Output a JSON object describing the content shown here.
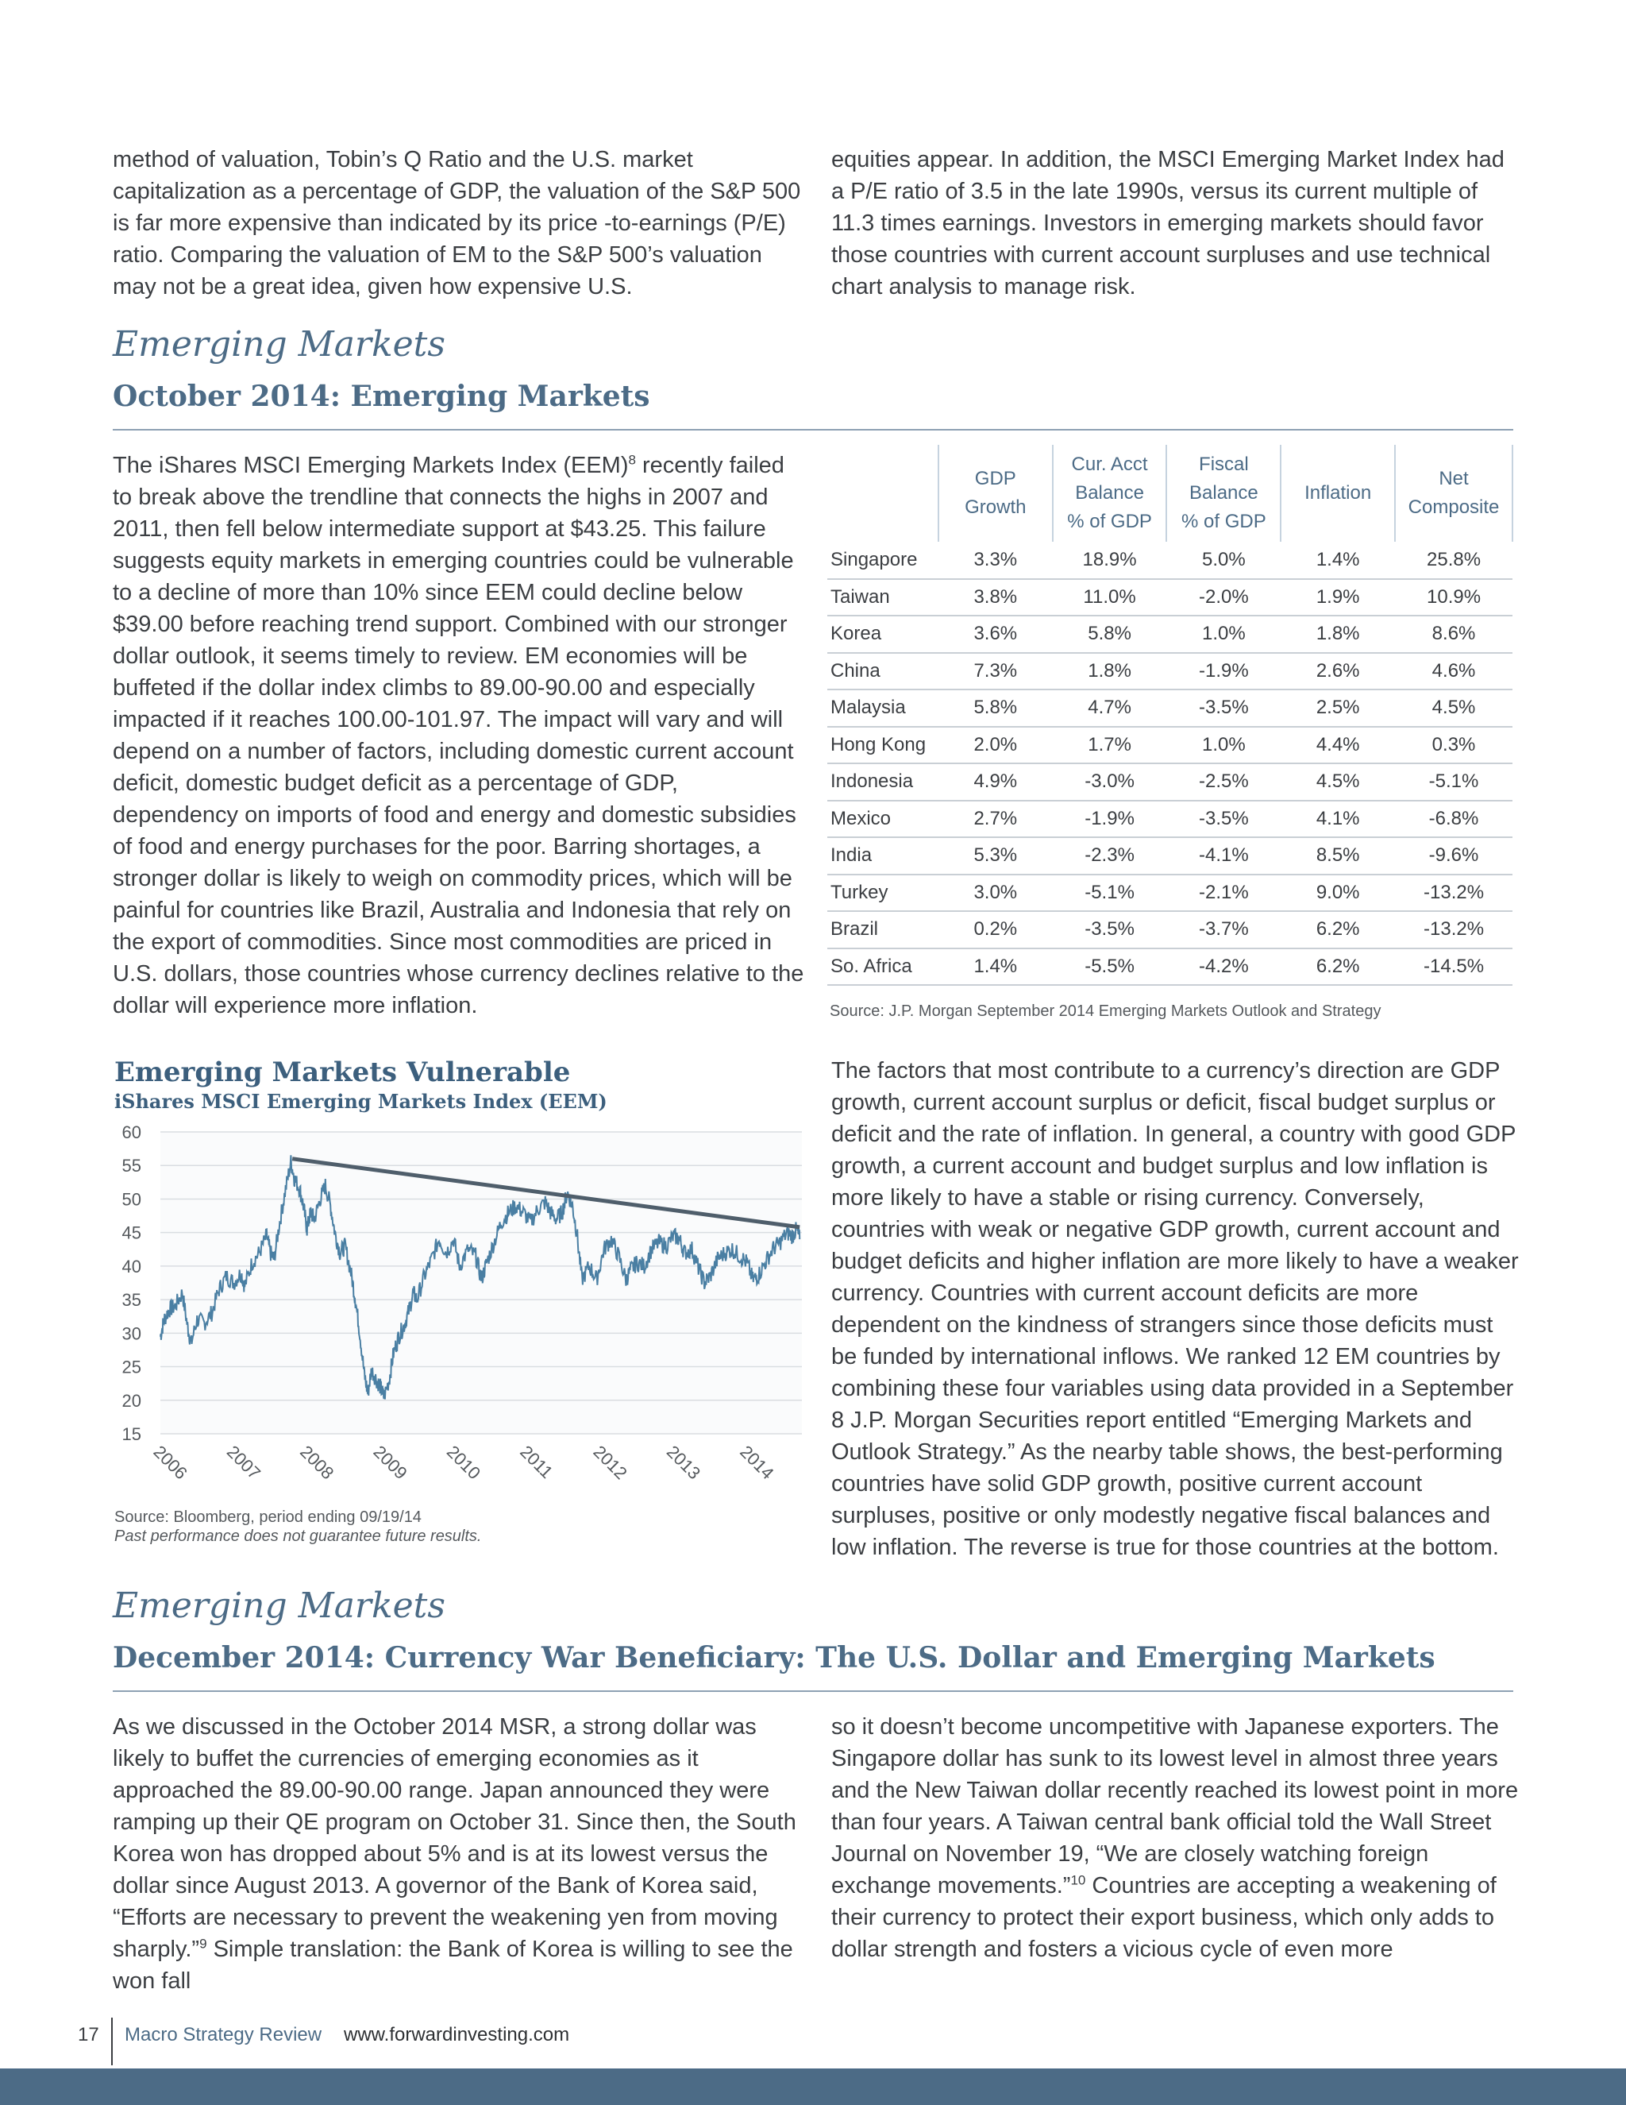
{
  "top_left_paragraph": "method of valuation, Tobin’s Q Ratio and the U.S. market capitalization as a percentage of GDP, the valuation of the S&P 500 is far more expensive than indicated by its price -to-earnings (P/E) ratio. Comparing the valuation of EM to the S&P 500’s valuation may not be a great idea, given how expensive U.S.",
  "top_right_paragraph": "equities appear. In addition, the MSCI Emerging Market Index had a P/E ratio of 3.5 in the late 1990s, versus its current multiple of 11.3 times earnings. Investors in emerging markets should favor those countries with current account surpluses and use technical chart analysis to manage risk.",
  "section1": {
    "kicker": "Emerging Markets",
    "title": "October 2014: Emerging Markets",
    "para_a": "The iShares MSCI Emerging Markets Index (EEM)",
    "footnote": "8",
    "para_b": " recently failed to break above the trendline that connects the highs in 2007 and 2011, then fell below intermediate support at $43.25. This failure suggests equity markets in emerging countries could be vulnerable to a decline of more than 10% since EEM could decline below $39.00 before reaching trend support. Combined with our stronger dollar outlook, it seems timely to review. EM economies will be buffeted if the dollar index climbs to 89.00-90.00 and especially impacted if it reaches 100.00-101.97. The impact will vary and will depend on a number of factors, including domestic current account deficit, domestic budget deficit as a percentage of GDP, dependency on imports of food and energy and domestic subsidies of food and energy purchases for the poor. Barring shortages, a stronger dollar is likely to weigh on commodity prices, which will be painful for countries like Brazil, Australia and Indonesia that rely on the export of commodities. Since most commodities are priced in U.S. dollars, those countries whose currency declines relative to the dollar will experience more inflation.",
    "right_paragraph": "The factors that most contribute to a currency’s direction are GDP growth, current account surplus or deficit, fiscal budget surplus or deficit and the rate of inflation. In general, a country with good GDP growth, a current account and budget surplus and low inflation is more likely to have a stable or rising currency. Conversely, countries with weak or negative GDP growth, current account and budget deficits and higher inflation are more likely to have a weaker currency. Countries with current account deficits are more dependent on the kindness of strangers since those deficits must be funded by international inflows. We ranked 12 EM countries by combining these four variables using data provided in a September 8 J.P. Morgan Securities report entitled “Emerging Markets and Outlook Strategy.” As the nearby table shows, the best-performing countries have solid GDP growth, positive current account surpluses, positive or only modestly negative fiscal balances and low inflation. The reverse is true for those countries at the bottom."
  },
  "table": {
    "headers": [
      [
        "GDP",
        "Growth"
      ],
      [
        "Cur. Acct",
        "Balance",
        "% of GDP"
      ],
      [
        "Fiscal",
        "Balance",
        "% of GDP"
      ],
      [
        "Inflation"
      ],
      [
        "Net",
        "Composite"
      ]
    ],
    "rows": [
      [
        "Singapore",
        "3.3%",
        "18.9%",
        "5.0%",
        "1.4%",
        "25.8%"
      ],
      [
        "Taiwan",
        "3.8%",
        "11.0%",
        "-2.0%",
        "1.9%",
        "10.9%"
      ],
      [
        "Korea",
        "3.6%",
        "5.8%",
        "1.0%",
        "1.8%",
        "8.6%"
      ],
      [
        "China",
        "7.3%",
        "1.8%",
        "-1.9%",
        "2.6%",
        "4.6%"
      ],
      [
        "Malaysia",
        "5.8%",
        "4.7%",
        "-3.5%",
        "2.5%",
        "4.5%"
      ],
      [
        "Hong Kong",
        "2.0%",
        "1.7%",
        "1.0%",
        "4.4%",
        "0.3%"
      ],
      [
        "Indonesia",
        "4.9%",
        "-3.0%",
        "-2.5%",
        "4.5%",
        "-5.1%"
      ],
      [
        "Mexico",
        "2.7%",
        "-1.9%",
        "-3.5%",
        "4.1%",
        "-6.8%"
      ],
      [
        "India",
        "5.3%",
        "-2.3%",
        "-4.1%",
        "8.5%",
        "-9.6%"
      ],
      [
        "Turkey",
        "3.0%",
        "-5.1%",
        "-2.1%",
        "9.0%",
        "-13.2%"
      ],
      [
        "Brazil",
        "0.2%",
        "-3.5%",
        "-3.7%",
        "6.2%",
        "-13.2%"
      ],
      [
        "So. Africa",
        "1.4%",
        "-5.5%",
        "-4.2%",
        "6.2%",
        "-14.5%"
      ]
    ],
    "source": "Source: J.P. Morgan September 2014 Emerging Markets Outlook and Strategy"
  },
  "chart_data": {
    "type": "line",
    "title": "Emerging Markets Vulnerable",
    "subtitle": "iShares MSCI Emerging Markets Index (EEM)",
    "xlabel": "",
    "ylabel": "",
    "ylim": [
      15,
      60
    ],
    "yticks": [
      60,
      55,
      50,
      45,
      40,
      35,
      30,
      25,
      20,
      15
    ],
    "xticks": [
      "2006",
      "2007",
      "2008",
      "2009",
      "2010",
      "2011",
      "2012",
      "2013",
      "2014"
    ],
    "xlim": [
      2006.0,
      2014.75
    ],
    "grid": true,
    "line_color": "#4a7fa3",
    "trendline_color": "#4f5e6b",
    "series": [
      {
        "x": [
          2006.0,
          2006.05,
          2006.12,
          2006.2,
          2006.3,
          2006.37,
          2006.42,
          2006.5,
          2006.6,
          2006.7,
          2006.8,
          2006.9,
          2007.0,
          2007.1,
          2007.15,
          2007.25,
          2007.35,
          2007.45,
          2007.5,
          2007.55,
          2007.62,
          2007.7,
          2007.78,
          2007.83,
          2007.9,
          2007.95,
          2008.0,
          2008.05,
          2008.1,
          2008.18,
          2008.25,
          2008.32,
          2008.38,
          2008.45,
          2008.52,
          2008.6,
          2008.66,
          2008.72,
          2008.78,
          2008.83,
          2008.88,
          2008.95,
          2009.0,
          2009.05,
          2009.12,
          2009.18,
          2009.25,
          2009.32,
          2009.38,
          2009.45,
          2009.5,
          2009.6,
          2009.7,
          2009.8,
          2009.9,
          2010.0,
          2010.08,
          2010.2,
          2010.3,
          2010.38,
          2010.45,
          2010.55,
          2010.65,
          2010.75,
          2010.85,
          2010.95,
          2011.05,
          2011.15,
          2011.25,
          2011.32,
          2011.4,
          2011.48,
          2011.55,
          2011.62,
          2011.68,
          2011.75,
          2011.85,
          2011.95,
          2012.05,
          2012.15,
          2012.25,
          2012.35,
          2012.42,
          2012.5,
          2012.6,
          2012.7,
          2012.8,
          2012.9,
          2013.0,
          2013.08,
          2013.15,
          2013.25,
          2013.33,
          2013.42,
          2013.5,
          2013.6,
          2013.7,
          2013.8,
          2013.9,
          2014.0,
          2014.08,
          2014.15,
          2014.25,
          2014.35,
          2014.45,
          2014.55,
          2014.62,
          2014.68,
          2014.72
        ],
        "values": [
          29.5,
          32.0,
          33.5,
          34.0,
          36.0,
          31.0,
          28.5,
          32.0,
          31.5,
          33.0,
          36.5,
          38.5,
          37.5,
          39.0,
          37.0,
          40.5,
          42.0,
          44.5,
          42.0,
          41.0,
          46.0,
          51.0,
          55.5,
          53.0,
          51.5,
          49.0,
          45.5,
          48.0,
          47.0,
          50.0,
          52.0,
          49.0,
          45.0,
          42.0,
          43.0,
          39.0,
          35.0,
          30.0,
          24.0,
          21.0,
          24.5,
          23.0,
          22.0,
          20.5,
          23.0,
          27.0,
          29.5,
          31.0,
          33.0,
          36.0,
          35.0,
          38.5,
          41.0,
          44.0,
          42.0,
          44.0,
          40.0,
          42.5,
          41.5,
          38.0,
          40.5,
          43.5,
          46.5,
          48.0,
          49.0,
          48.0,
          46.5,
          48.5,
          49.5,
          48.0,
          47.0,
          48.0,
          51.0,
          49.0,
          45.0,
          38.0,
          40.0,
          38.0,
          42.5,
          44.0,
          41.5,
          38.0,
          39.5,
          40.5,
          40.0,
          42.5,
          43.5,
          43.0,
          44.5,
          44.0,
          42.0,
          42.5,
          40.0,
          37.5,
          38.5,
          41.0,
          42.0,
          42.5,
          41.5,
          40.5,
          38.0,
          38.5,
          40.5,
          42.5,
          43.5,
          45.0,
          44.5,
          45.5,
          44.0
        ]
      }
    ],
    "trendline": {
      "x": [
        2007.8,
        2014.72
      ],
      "values": [
        56.0,
        45.8
      ]
    },
    "source": "Source: Bloomberg, period ending 09/19/14",
    "disclaimer": "Past performance does not guarantee future results."
  },
  "section2": {
    "kicker": "Emerging Markets",
    "title": "December 2014: Currency War Beneficiary: The U.S. Dollar and Emerging Markets",
    "left_a": "As we discussed in the October 2014 MSR, a strong dollar was likely to buffet the currencies of emerging economies as it approached the 89.00-90.00 range. Japan announced they were ramping up their QE program on October 31. Since then, the South Korea won has dropped about 5% and is at its lowest versus the dollar since August 2013. A governor of the Bank of Korea said, “Efforts are necessary to prevent the weakening yen from moving sharply.”",
    "left_footnote": "9",
    "left_b": " Simple translation: the Bank of Korea is willing to see the won fall",
    "right_a": "so it doesn’t become uncompetitive with Japanese exporters. The Singapore dollar has sunk to its lowest level in almost three years and the New Taiwan dollar recently reached its lowest point in more than four years. A Taiwan central bank official told the Wall Street Journal on November 19, “We are closely watching foreign exchange movements.”",
    "right_footnote": "10",
    "right_b": " Countries are accepting a weakening of their currency to protect their export business, which only adds to dollar strength and fosters a vicious cycle of even more"
  },
  "footer": {
    "page_number": "17",
    "brand": "Macro Strategy Review",
    "url": "www.forwardinvesting.com",
    "strip_color": "#4c6b86"
  }
}
